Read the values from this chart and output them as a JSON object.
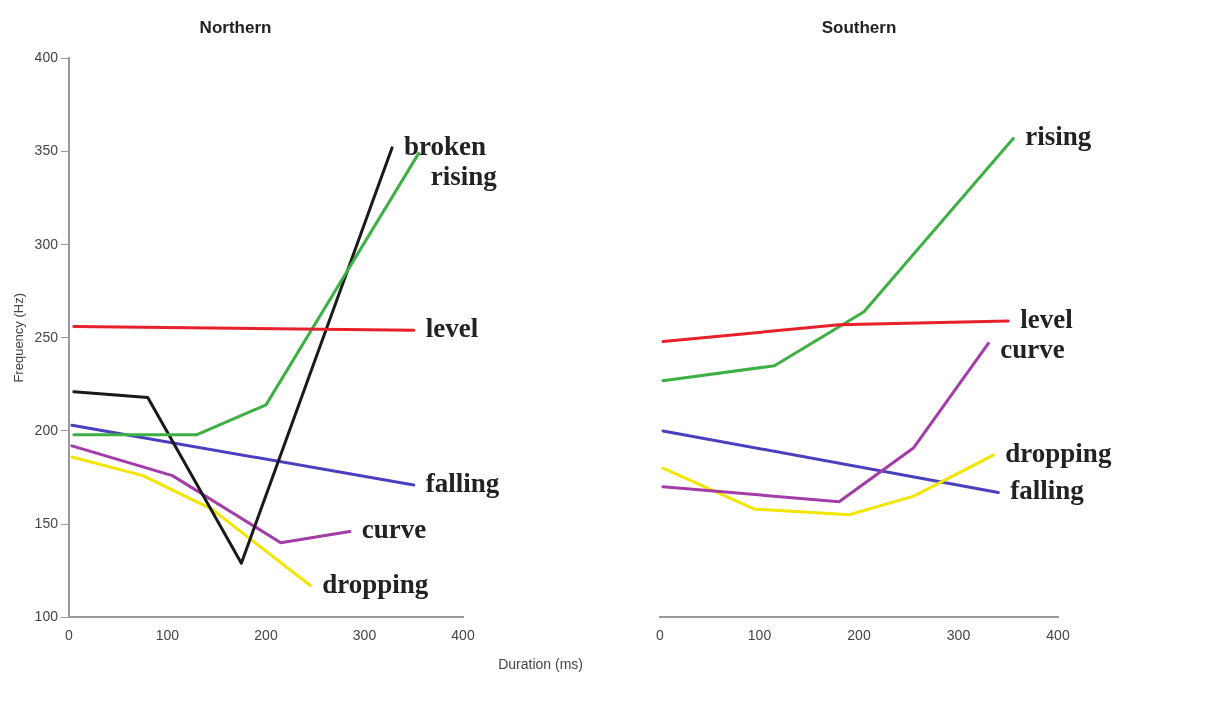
{
  "chart_data": [
    {
      "type": "line",
      "title": "Northern",
      "ylabel": "Frequency (Hz)",
      "xlabel": "Duration (ms)",
      "xlim": [
        0,
        400
      ],
      "xticks": [
        0,
        100,
        200,
        300,
        400
      ],
      "ylim": [
        100,
        400
      ],
      "yticks": [
        100,
        150,
        200,
        250,
        300,
        350,
        400
      ],
      "grid": false,
      "legend": false,
      "marker": "none",
      "series": [
        {
          "name": "level",
          "color": "#e8202a",
          "x": [
            5,
            350
          ],
          "values": [
            256,
            254
          ]
        },
        {
          "name": "rising",
          "color": "#3cb043",
          "x": [
            5,
            130,
            200,
            355
          ],
          "values": [
            198,
            198,
            214,
            349
          ]
        },
        {
          "name": "broken",
          "color": "#1a1a1a",
          "x": [
            5,
            80,
            175,
            328
          ],
          "values": [
            221,
            218,
            129,
            352
          ]
        },
        {
          "name": "falling",
          "color": "#4b3fc0",
          "x": [
            3,
            350
          ],
          "values": [
            203,
            171
          ]
        },
        {
          "name": "curve",
          "color": "#a33ca8",
          "x": [
            3,
            105,
            215,
            285
          ],
          "values": [
            192,
            176,
            140,
            146
          ]
        },
        {
          "name": "dropping",
          "color": "#f2e600",
          "x": [
            3,
            75,
            145,
            245
          ],
          "values": [
            186,
            176,
            158,
            117
          ]
        }
      ]
    },
    {
      "type": "line",
      "title": "Southern",
      "xlim": [
        0,
        400
      ],
      "xticks": [
        0,
        100,
        200,
        300,
        400
      ],
      "ylim": [
        100,
        400
      ],
      "yticks": [
        100,
        150,
        200,
        250,
        300,
        350,
        400
      ],
      "tick_labels": "x",
      "grid": false,
      "legend": false,
      "marker": "none",
      "series": [
        {
          "name": "level",
          "color": "#e8202a",
          "x": [
            3,
            180,
            350
          ],
          "values": [
            248,
            257,
            259
          ]
        },
        {
          "name": "rising",
          "color": "#3cb043",
          "x": [
            3,
            115,
            205,
            355
          ],
          "values": [
            227,
            235,
            264,
            357
          ]
        },
        {
          "name": "curve",
          "color": "#a33ca8",
          "x": [
            3,
            180,
            255,
            330
          ],
          "values": [
            170,
            162,
            191,
            247
          ]
        },
        {
          "name": "dropping",
          "color": "#f2e600",
          "x": [
            3,
            95,
            190,
            255,
            335
          ],
          "values": [
            180,
            158,
            155,
            165,
            187
          ]
        },
        {
          "name": "falling",
          "color": "#4b3fc0",
          "x": [
            3,
            340
          ],
          "values": [
            200,
            167
          ]
        }
      ]
    }
  ]
}
